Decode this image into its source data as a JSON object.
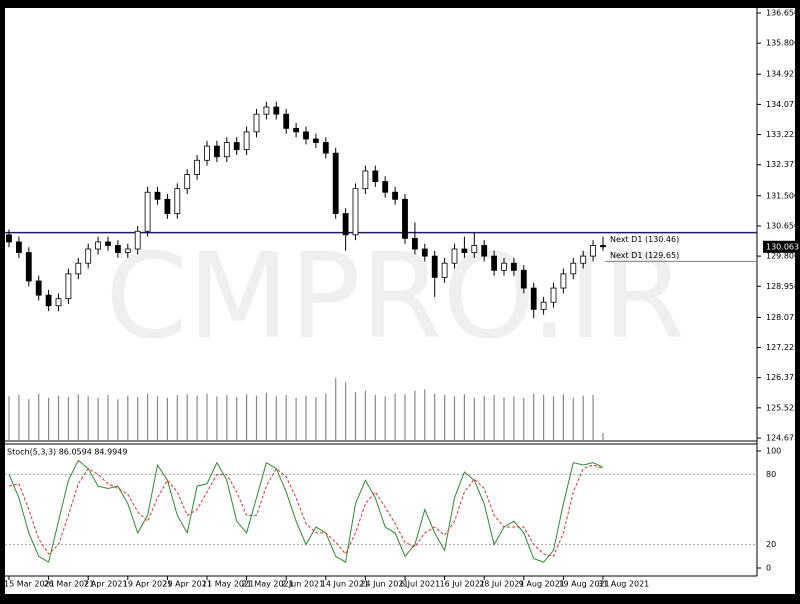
{
  "chart_data": {
    "type": "candlestick",
    "watermark": "CMPRO.IR",
    "categories": [
      "15 Mar 2021",
      null,
      null,
      null,
      "26 Mar 2021",
      null,
      null,
      null,
      "7 Apr 2021",
      null,
      null,
      null,
      "19 Apr 2021",
      null,
      null,
      null,
      "29 Apr 2021",
      null,
      null,
      null,
      "11 May 2021",
      null,
      null,
      null,
      "21 May 2021",
      null,
      null,
      null,
      "2 Jun 2021",
      null,
      null,
      null,
      "14 Jun 2021",
      null,
      null,
      null,
      "24 Jun 2021",
      null,
      null,
      null,
      "6 Jul 2021",
      null,
      null,
      null,
      "16 Jul 2021",
      null,
      null,
      null,
      "28 Jul 2021",
      null,
      null,
      null,
      "9 Aug 2021",
      null,
      null,
      null,
      "19 Aug 2021",
      null,
      null,
      null,
      "31 Aug 2021"
    ],
    "ohlc": [
      [
        130.4,
        130.55,
        130.05,
        130.2
      ],
      [
        130.2,
        130.35,
        129.75,
        129.9
      ],
      [
        129.9,
        130.05,
        128.95,
        129.1
      ],
      [
        129.1,
        129.25,
        128.55,
        128.7
      ],
      [
        128.7,
        128.85,
        128.25,
        128.4
      ],
      [
        128.4,
        128.75,
        128.25,
        128.6
      ],
      [
        128.6,
        129.45,
        128.45,
        129.3
      ],
      [
        129.3,
        129.75,
        129.15,
        129.6
      ],
      [
        129.6,
        130.15,
        129.45,
        130.0
      ],
      [
        130.0,
        130.35,
        129.85,
        130.2
      ],
      [
        130.2,
        130.35,
        129.95,
        130.1
      ],
      [
        130.1,
        130.25,
        129.75,
        129.9
      ],
      [
        129.9,
        130.15,
        129.75,
        130.0
      ],
      [
        130.0,
        130.65,
        129.85,
        130.5
      ],
      [
        130.5,
        131.75,
        130.35,
        131.6
      ],
      [
        131.6,
        131.75,
        131.25,
        131.4
      ],
      [
        131.4,
        131.55,
        130.85,
        131.0
      ],
      [
        131.0,
        131.85,
        130.85,
        131.7
      ],
      [
        131.7,
        132.25,
        131.55,
        132.1
      ],
      [
        132.1,
        132.65,
        131.95,
        132.5
      ],
      [
        132.5,
        133.05,
        132.35,
        132.9
      ],
      [
        132.9,
        133.05,
        132.45,
        132.6
      ],
      [
        132.6,
        133.15,
        132.45,
        133.0
      ],
      [
        133.0,
        133.15,
        132.65,
        132.8
      ],
      [
        132.8,
        133.45,
        132.65,
        133.3
      ],
      [
        133.3,
        133.95,
        133.15,
        133.8
      ],
      [
        133.8,
        134.15,
        133.65,
        134.0
      ],
      [
        134.0,
        134.15,
        133.65,
        133.8
      ],
      [
        133.8,
        133.95,
        133.25,
        133.4
      ],
      [
        133.4,
        133.55,
        133.15,
        133.3
      ],
      [
        133.3,
        133.45,
        132.95,
        133.1
      ],
      [
        133.1,
        133.25,
        132.85,
        133.0
      ],
      [
        133.0,
        133.15,
        132.55,
        132.7
      ],
      [
        132.7,
        132.85,
        130.85,
        131.0
      ],
      [
        131.0,
        131.15,
        129.95,
        130.4
      ],
      [
        130.4,
        131.85,
        130.25,
        131.7
      ],
      [
        131.7,
        132.35,
        131.55,
        132.2
      ],
      [
        132.2,
        132.35,
        131.75,
        131.9
      ],
      [
        131.9,
        132.05,
        131.45,
        131.6
      ],
      [
        131.6,
        131.75,
        131.25,
        131.4
      ],
      [
        131.4,
        131.55,
        130.15,
        130.3
      ],
      [
        130.3,
        130.75,
        129.85,
        130.0
      ],
      [
        130.0,
        130.15,
        129.65,
        129.8
      ],
      [
        129.8,
        129.95,
        128.65,
        129.2
      ],
      [
        129.2,
        129.75,
        129.05,
        129.6
      ],
      [
        129.6,
        130.15,
        129.45,
        130.0
      ],
      [
        130.0,
        130.35,
        129.75,
        129.9
      ],
      [
        129.9,
        130.45,
        129.75,
        130.1
      ],
      [
        130.1,
        130.25,
        129.65,
        129.8
      ],
      [
        129.8,
        129.95,
        129.25,
        129.4
      ],
      [
        129.4,
        129.75,
        129.25,
        129.6
      ],
      [
        129.6,
        129.75,
        129.25,
        129.4
      ],
      [
        129.4,
        129.55,
        128.75,
        128.9
      ],
      [
        128.9,
        129.05,
        128.05,
        128.3
      ],
      [
        128.3,
        128.65,
        128.15,
        128.5
      ],
      [
        128.5,
        129.05,
        128.35,
        128.9
      ],
      [
        128.9,
        129.45,
        128.75,
        129.3
      ],
      [
        129.3,
        129.75,
        129.15,
        129.6
      ],
      [
        129.6,
        129.95,
        129.45,
        129.8
      ],
      [
        129.8,
        130.25,
        129.65,
        130.1
      ],
      [
        130.1,
        130.35,
        129.95,
        130.063
      ]
    ],
    "last_price_label": "130.063",
    "volume": [
      62,
      64,
      58,
      66,
      60,
      63,
      61,
      65,
      62,
      60,
      64,
      58,
      63,
      61,
      66,
      62,
      60,
      64,
      65,
      63,
      66,
      62,
      64,
      61,
      65,
      63,
      67,
      62,
      64,
      60,
      63,
      61,
      66,
      88,
      82,
      68,
      70,
      64,
      62,
      66,
      65,
      70,
      72,
      66,
      64,
      62,
      65,
      60,
      63,
      64,
      61,
      62,
      60,
      66,
      64,
      62,
      65,
      60,
      63,
      64,
      10
    ],
    "volume_ylim": [
      0,
      100
    ],
    "ylim": [
      124.675,
      136.65
    ],
    "yticks": [
      {
        "value": 136.65,
        "label": "136.650"
      },
      {
        "value": 135.8,
        "label": "135.800"
      },
      {
        "value": 134.925,
        "label": "134.925"
      },
      {
        "value": 134.075,
        "label": "134.075"
      },
      {
        "value": 133.225,
        "label": "133.225"
      },
      {
        "value": 132.375,
        "label": "132.375"
      },
      {
        "value": 131.5,
        "label": "131.500"
      },
      {
        "value": 130.65,
        "label": "130.650"
      },
      {
        "value": 129.8,
        "label": "129.800"
      },
      {
        "value": 128.95,
        "label": "128.950"
      },
      {
        "value": 128.075,
        "label": "128.075"
      },
      {
        "value": 127.225,
        "label": "127.225"
      },
      {
        "value": 126.375,
        "label": "126.375"
      },
      {
        "value": 125.525,
        "label": "125.525"
      },
      {
        "value": 124.675,
        "label": "124.675"
      }
    ],
    "levels": [
      {
        "label": "Next D1 (130.46)",
        "value": 130.46,
        "color": "#1a1a6e"
      },
      {
        "label": "Next D1 (129.65)",
        "value": 129.65,
        "color": "#808080"
      }
    ],
    "stochastic": {
      "title": "Stoch(5,3,3) 86.0594 84.9949",
      "ylim": [
        0,
        100
      ],
      "yticks": [
        100,
        80,
        20,
        0
      ],
      "series": [
        {
          "name": "main",
          "color": "#2e8b2e",
          "values": [
            80,
            60,
            30,
            10,
            5,
            40,
            75,
            92,
            85,
            70,
            68,
            70,
            55,
            30,
            45,
            88,
            75,
            45,
            30,
            70,
            72,
            90,
            75,
            40,
            30,
            60,
            90,
            85,
            65,
            40,
            20,
            35,
            30,
            10,
            5,
            55,
            75,
            60,
            35,
            30,
            10,
            20,
            50,
            30,
            15,
            60,
            82,
            75,
            55,
            20,
            35,
            40,
            30,
            8,
            5,
            15,
            55,
            90,
            88,
            90,
            86.0594
          ]
        },
        {
          "name": "signal",
          "color": "#e03030",
          "values": [
            70,
            72,
            50,
            25,
            12,
            20,
            45,
            72,
            85,
            80,
            72,
            68,
            63,
            48,
            40,
            60,
            75,
            65,
            45,
            50,
            65,
            80,
            80,
            65,
            45,
            45,
            70,
            85,
            78,
            60,
            38,
            30,
            30,
            22,
            12,
            30,
            55,
            65,
            52,
            38,
            22,
            18,
            30,
            35,
            28,
            40,
            65,
            76,
            68,
            45,
            35,
            35,
            35,
            20,
            12,
            10,
            30,
            65,
            85,
            88,
            84.9949
          ]
        }
      ]
    }
  }
}
